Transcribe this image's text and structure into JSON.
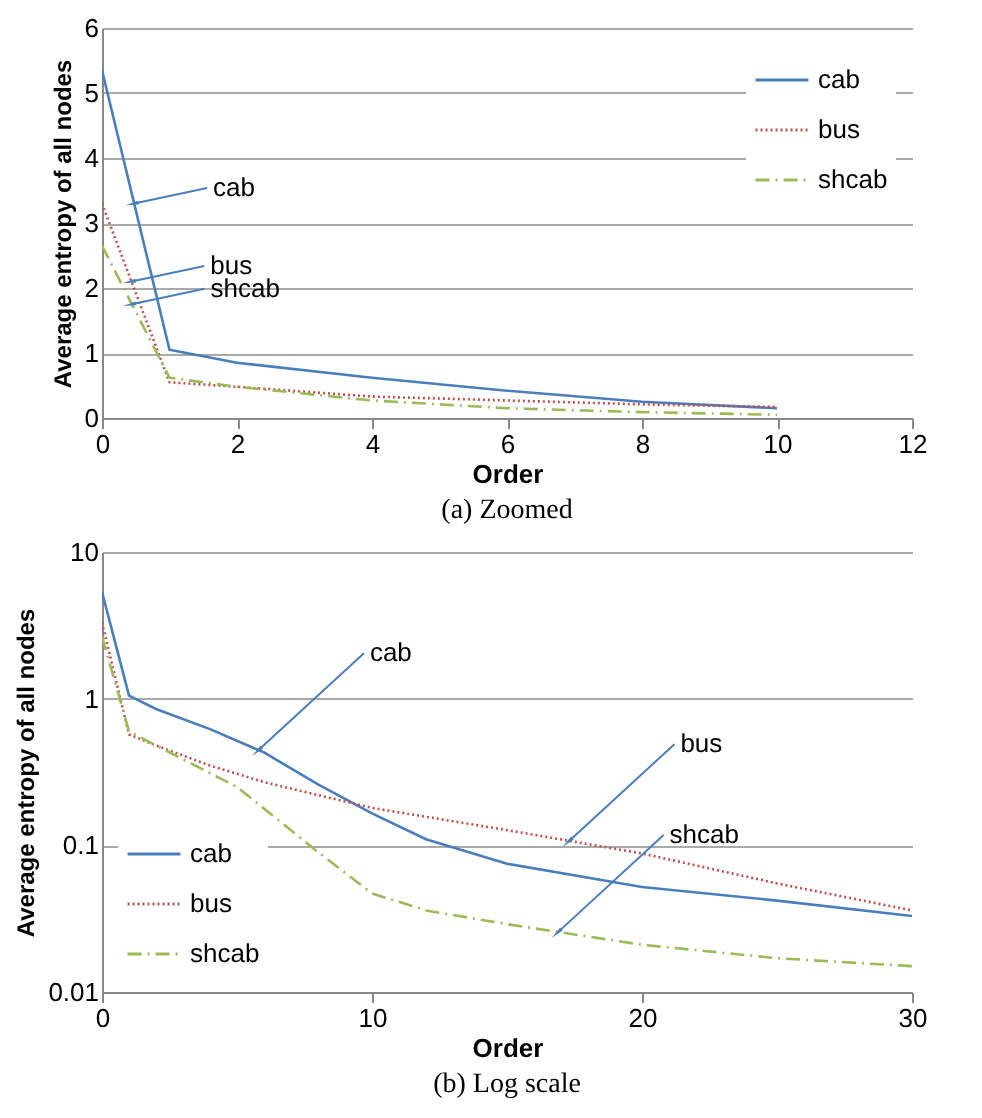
{
  "chart_data": [
    {
      "type": "line",
      "title": "(a) Zoomed",
      "xlabel": "Order",
      "ylabel": "Average entropy of all nodes",
      "x": [
        0,
        1,
        2,
        4,
        6,
        8,
        10
      ],
      "xlim": [
        0,
        12
      ],
      "xticks": [
        0,
        2,
        4,
        6,
        8,
        10,
        12
      ],
      "ylim": [
        0,
        6
      ],
      "yticks": [
        0,
        1,
        2,
        3,
        4,
        5,
        6
      ],
      "grid": "y",
      "legend": "top right",
      "series": [
        {
          "name": "cab",
          "color": "#4a7ebb",
          "line_style": "solid",
          "values": [
            5.35,
            1.05,
            0.85,
            0.62,
            0.42,
            0.25,
            0.15
          ]
        },
        {
          "name": "bus",
          "color": "#c0504d",
          "line_style": "dotted",
          "values": [
            3.3,
            0.55,
            0.48,
            0.33,
            0.27,
            0.21,
            0.17
          ]
        },
        {
          "name": "shcab",
          "color": "#9bbb59",
          "line_style": "dashdot",
          "values": [
            2.65,
            0.62,
            0.48,
            0.27,
            0.15,
            0.09,
            0.05
          ]
        }
      ],
      "annotations": [
        {
          "text": "cab",
          "x": 0.477,
          "y": 3.3
        },
        {
          "text": "bus",
          "x": 0.436,
          "y": 2.1
        },
        {
          "text": "shcab",
          "x": 0.439,
          "y": 1.75
        }
      ]
    },
    {
      "type": "line",
      "title": "(b) Log scale",
      "xlabel": "Order",
      "ylabel": "Average entropy of all nodes",
      "xlim": [
        0,
        30
      ],
      "xticks": [
        0,
        10,
        20,
        30
      ],
      "ylim": [
        0.01,
        10
      ],
      "yticks": [
        0.01,
        0.1,
        1,
        10
      ],
      "log": "y",
      "grid": "y",
      "legend": "bottom left",
      "series": [
        {
          "name": "cab",
          "color": "#4a7ebb",
          "line_style": "solid",
          "x": [
            0,
            1,
            2,
            4,
            6,
            8,
            10,
            12,
            15,
            20,
            25,
            30
          ],
          "values": [
            5.35,
            1.05,
            0.85,
            0.62,
            0.43,
            0.26,
            0.165,
            0.11,
            0.075,
            0.052,
            0.042,
            0.033
          ]
        },
        {
          "name": "bus",
          "color": "#c0504d",
          "line_style": "dotted",
          "x": [
            0,
            1,
            2,
            4,
            6,
            8,
            10,
            15,
            20,
            25,
            30
          ],
          "values": [
            3.3,
            0.57,
            0.48,
            0.35,
            0.27,
            0.22,
            0.18,
            0.127,
            0.088,
            0.055,
            0.036
          ]
        },
        {
          "name": "shcab",
          "color": "#9bbb59",
          "line_style": "dashdot",
          "x": [
            0,
            1,
            2,
            5,
            8,
            10,
            12,
            15,
            20,
            25,
            30
          ],
          "values": [
            2.65,
            0.6,
            0.48,
            0.25,
            0.09,
            0.047,
            0.036,
            0.029,
            0.021,
            0.017,
            0.015
          ]
        }
      ],
      "annotations": [
        {
          "text": "cab",
          "x": 5.8,
          "y": 0.446
        },
        {
          "text": "bus",
          "x": 17.3,
          "y": 0.107
        },
        {
          "text": "shcab",
          "x": 16.9,
          "y": 0.0257
        }
      ]
    }
  ]
}
